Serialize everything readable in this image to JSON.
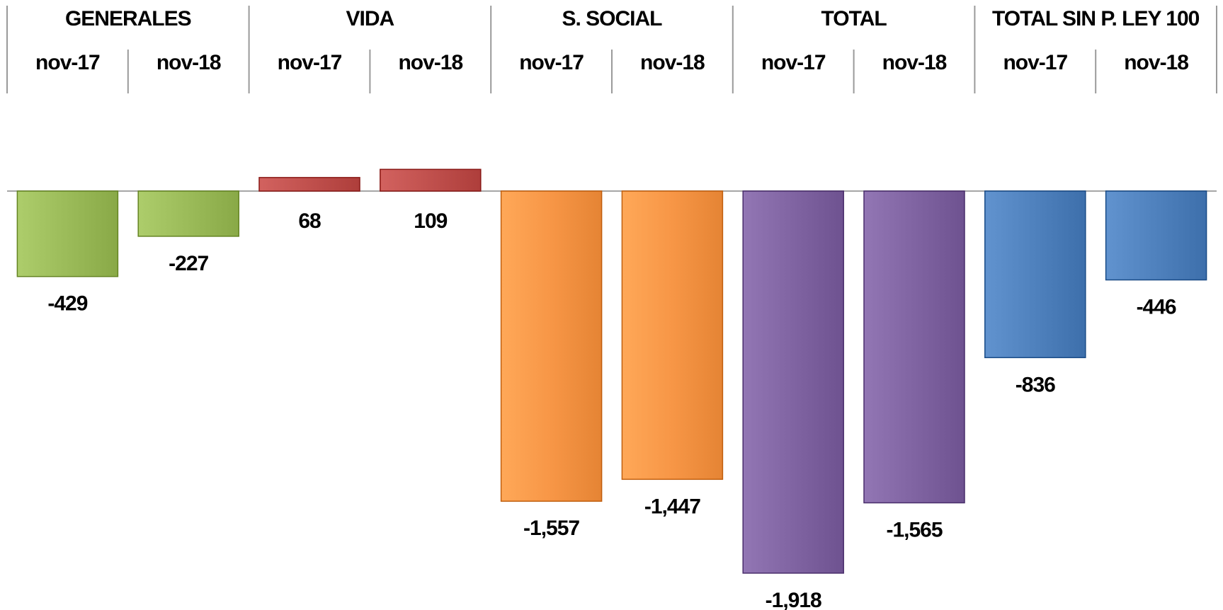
{
  "chart_data": {
    "type": "bar",
    "groups": [
      {
        "name": "GENERALES",
        "color": "#9BBB59",
        "bars": [
          {
            "period": "nov-17",
            "value": -429,
            "label": "-429"
          },
          {
            "period": "nov-18",
            "value": -227,
            "label": "-227"
          }
        ]
      },
      {
        "name": "VIDA",
        "color": "#C0504D",
        "bars": [
          {
            "period": "nov-17",
            "value": 68,
            "label": "68"
          },
          {
            "period": "nov-18",
            "value": 109,
            "label": "109"
          }
        ]
      },
      {
        "name": "S. SOCIAL",
        "color": "#F79646",
        "bars": [
          {
            "period": "nov-17",
            "value": -1557,
            "label": "-1,557"
          },
          {
            "period": "nov-18",
            "value": -1447,
            "label": "-1,447"
          }
        ]
      },
      {
        "name": "TOTAL",
        "color": "#8064A2",
        "bars": [
          {
            "period": "nov-17",
            "value": -1918,
            "label": "-1,918"
          },
          {
            "period": "nov-18",
            "value": -1565,
            "label": "-1,565"
          }
        ]
      },
      {
        "name": "TOTAL SIN P. LEY 100",
        "color": "#4F81BD",
        "bars": [
          {
            "period": "nov-17",
            "value": -836,
            "label": "-836"
          },
          {
            "period": "nov-18",
            "value": -446,
            "label": "-446"
          }
        ]
      }
    ],
    "ylim": [
      -2050,
      130
    ],
    "grid": false,
    "legend": "none",
    "title": "",
    "xlabel": "",
    "ylabel": ""
  }
}
